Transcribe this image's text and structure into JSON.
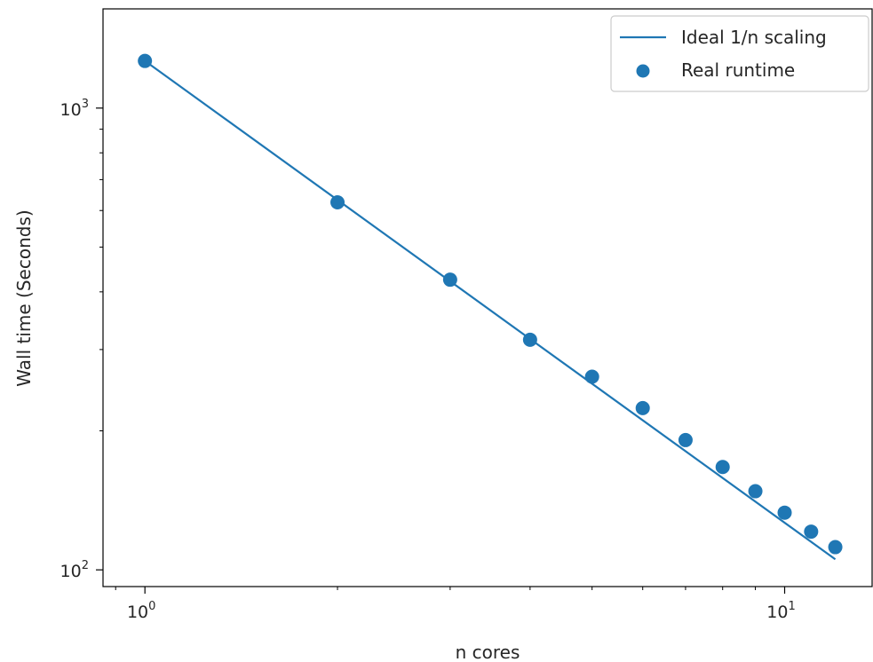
{
  "chart_data": {
    "type": "scatter",
    "x_scale": "log",
    "y_scale": "log",
    "xlabel": "n cores",
    "ylabel": "Wall time (Seconds)",
    "xlim": [
      0.86,
      13.7
    ],
    "ylim": [
      92,
      1640
    ],
    "x_ticks": [
      {
        "value": 1,
        "base": "10",
        "exp": "0"
      },
      {
        "value": 10,
        "base": "10",
        "exp": "1"
      }
    ],
    "y_ticks": [
      {
        "value": 100,
        "base": "10",
        "exp": "2"
      },
      {
        "value": 1000,
        "base": "10",
        "exp": "3"
      }
    ],
    "grid": false,
    "legend_position": "top-right",
    "series": [
      {
        "name": "Ideal 1/n scaling",
        "kind": "line",
        "color": "#1f77b4",
        "x": [
          1,
          12
        ],
        "y": [
          1265,
          105.4
        ]
      },
      {
        "name": "Real runtime",
        "kind": "scatter",
        "color": "#1f77b4",
        "x": [
          1,
          2,
          3,
          4,
          5,
          6,
          7,
          8,
          9,
          10,
          11,
          12
        ],
        "y": [
          1265,
          625,
          425,
          315,
          262,
          224,
          191,
          167,
          148,
          133,
          121,
          112
        ]
      }
    ]
  }
}
